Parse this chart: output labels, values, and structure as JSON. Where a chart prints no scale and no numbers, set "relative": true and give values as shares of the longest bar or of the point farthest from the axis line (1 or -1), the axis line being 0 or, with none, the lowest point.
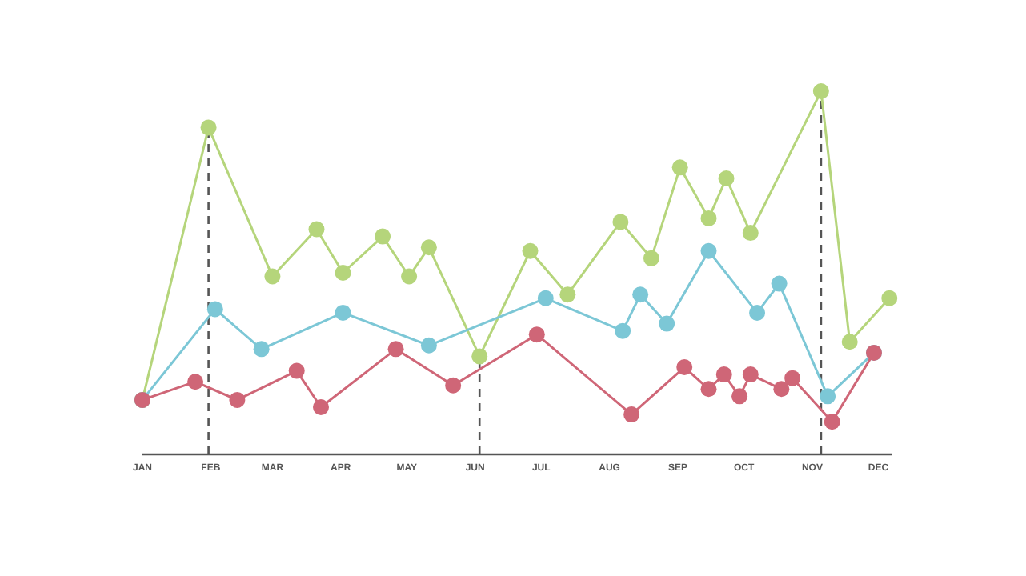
{
  "chart_data": {
    "type": "line",
    "relative": true,
    "marker": "circle",
    "line_style": "solid",
    "xlim": [
      "--01-01",
      "--12-07"
    ],
    "xticks": [
      {
        "value": "--01-01",
        "label": "JAN"
      },
      {
        "value": "--02-01",
        "label": "FEB"
      },
      {
        "value": "--03-01",
        "label": "MAR"
      },
      {
        "value": "--04-01",
        "label": "APR"
      },
      {
        "value": "--05-01",
        "label": "MAY"
      },
      {
        "value": "--06-01",
        "label": "JUN"
      },
      {
        "value": "--07-01",
        "label": "JUL"
      },
      {
        "value": "--08-01",
        "label": "AUG"
      },
      {
        "value": "--09-01",
        "label": "SEP"
      },
      {
        "value": "--10-01",
        "label": "OCT"
      },
      {
        "value": "--11-01",
        "label": "NOV"
      },
      {
        "value": "--12-01",
        "label": "DEC"
      }
    ],
    "series": [
      {
        "color": "#b5d57b",
        "x": [
          "--01-01",
          "--01-31",
          "--03-01",
          "--03-21",
          "--04-02",
          "--04-20",
          "--05-02",
          "--05-11",
          "--06-03",
          "--06-26",
          "--07-13",
          "--08-06",
          "--08-20",
          "--09-02",
          "--09-15",
          "--09-23",
          "--10-04",
          "--11-05",
          "--11-18",
          "--12-06"
        ],
        "values": [
          0.15,
          0.9,
          0.49,
          0.62,
          0.5,
          0.6,
          0.49,
          0.57,
          0.27,
          0.56,
          0.44,
          0.64,
          0.54,
          0.79,
          0.65,
          0.76,
          0.61,
          1.0,
          0.31,
          0.43
        ]
      },
      {
        "color": "#7cc7d6",
        "x": [
          "--01-01",
          "--02-03",
          "--02-24",
          "--04-02",
          "--05-11",
          "--07-03",
          "--08-07",
          "--08-15",
          "--08-27",
          "--09-15",
          "--10-07",
          "--10-17",
          "--11-08",
          "--11-29"
        ],
        "values": [
          0.15,
          0.4,
          0.29,
          0.39,
          0.3,
          0.43,
          0.34,
          0.44,
          0.36,
          0.56,
          0.39,
          0.47,
          0.16,
          0.28
        ]
      },
      {
        "color": "#cf6677",
        "x": [
          "--01-01",
          "--01-25",
          "--02-13",
          "--03-12",
          "--03-23",
          "--04-26",
          "--05-22",
          "--06-29",
          "--08-11",
          "--09-04",
          "--09-15",
          "--09-22",
          "--09-29",
          "--10-04",
          "--10-18",
          "--10-23",
          "--11-10",
          "--11-29"
        ],
        "values": [
          0.15,
          0.2,
          0.15,
          0.23,
          0.13,
          0.29,
          0.19,
          0.33,
          0.11,
          0.24,
          0.18,
          0.22,
          0.16,
          0.22,
          0.18,
          0.21,
          0.09,
          0.28
        ]
      }
    ],
    "ref_lines": [
      {
        "axis": "x",
        "value": "--01-31",
        "color": "#555555",
        "line_style": "dashed"
      },
      {
        "axis": "x",
        "value": "--06-03",
        "color": "#555555",
        "line_style": "dashed"
      },
      {
        "axis": "x",
        "value": "--11-05",
        "color": "#555555",
        "line_style": "dashed"
      }
    ]
  }
}
